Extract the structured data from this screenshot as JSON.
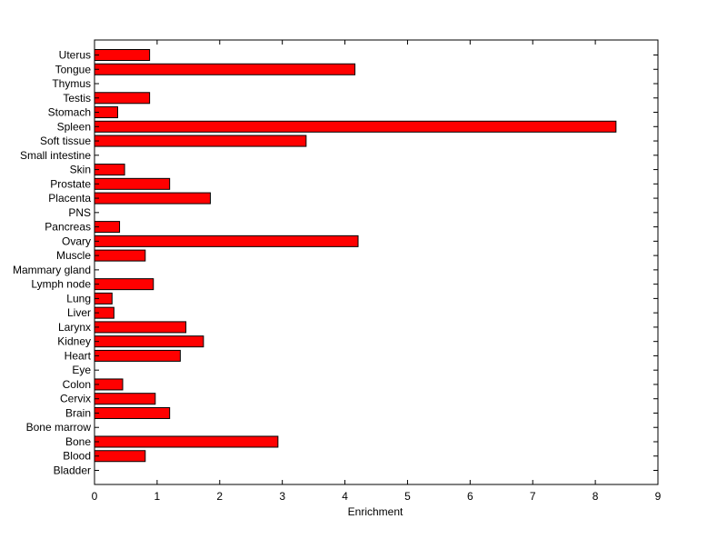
{
  "chart_data": {
    "type": "bar",
    "orientation": "horizontal",
    "categories": [
      "Uterus",
      "Tongue",
      "Thymus",
      "Testis",
      "Stomach",
      "Spleen",
      "Soft tissue",
      "Small intestine",
      "Skin",
      "Prostate",
      "Placenta",
      "PNS",
      "Pancreas",
      "Ovary",
      "Muscle",
      "Mammary gland",
      "Lymph node",
      "Lung",
      "Liver",
      "Larynx",
      "Kidney",
      "Heart",
      "Eye",
      "Colon",
      "Cervix",
      "Brain",
      "Bone marrow",
      "Bone",
      "Blood",
      "Bladder"
    ],
    "values": [
      0.88,
      4.16,
      0.0,
      0.88,
      0.37,
      8.33,
      3.38,
      0.0,
      0.48,
      1.2,
      1.85,
      0.0,
      0.4,
      4.21,
      0.81,
      0.0,
      0.94,
      0.28,
      0.31,
      1.46,
      1.74,
      1.37,
      0.0,
      0.45,
      0.97,
      1.2,
      0.0,
      2.93,
      0.81,
      0.0
    ],
    "title": "",
    "xlabel": "Enrichment",
    "ylabel": "",
    "xlim": [
      0,
      9
    ],
    "xticks": [
      0,
      1,
      2,
      3,
      4,
      5,
      6,
      7,
      8,
      9
    ],
    "grid": false,
    "colors": {
      "bar_fill": "#ff0000",
      "bar_stroke": "#000000",
      "axis": "#000000",
      "background": "#ffffff"
    }
  }
}
